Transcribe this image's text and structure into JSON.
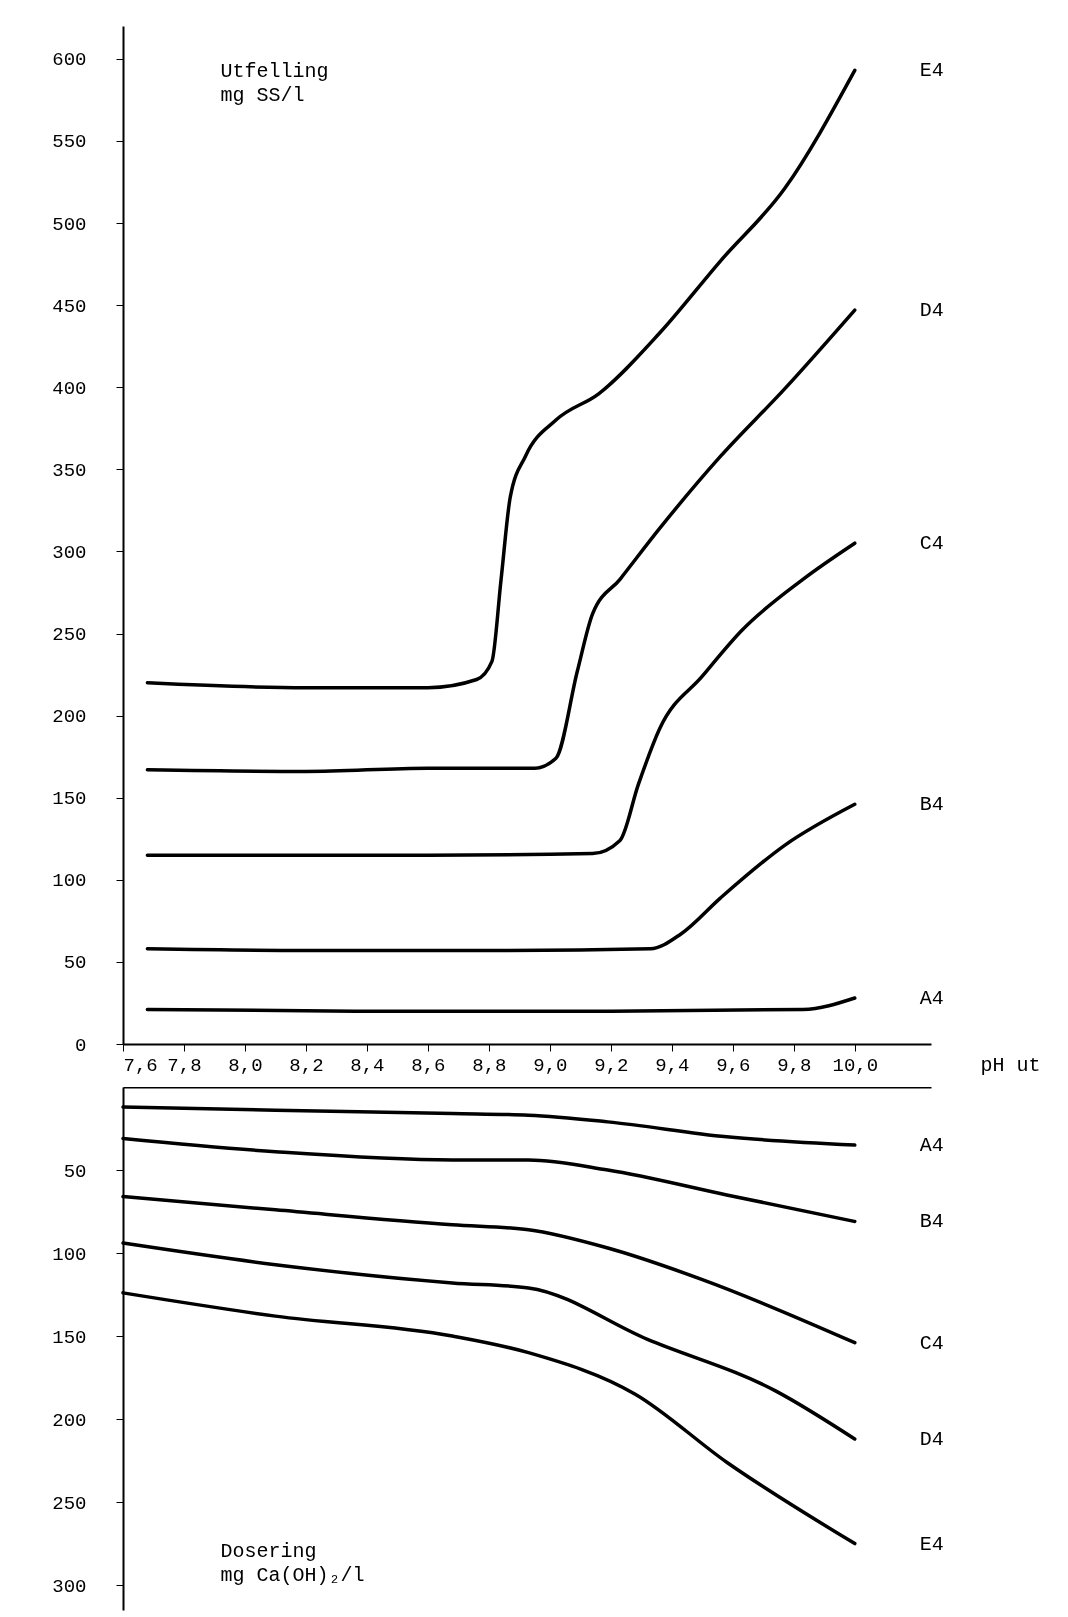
{
  "chart_data": [
    {
      "type": "line",
      "xlabel": "pH ut",
      "ylabel": "Utfelling\nmg SS/l",
      "xlim": [
        7.6,
        10.25
      ],
      "ylim": [
        0,
        620
      ],
      "xticks": [
        {
          "value": 7.6,
          "label": "7,6"
        },
        {
          "value": 7.8,
          "label": "7,8"
        },
        {
          "value": 8.0,
          "label": "8,0"
        },
        {
          "value": 8.2,
          "label": "8,2"
        },
        {
          "value": 8.4,
          "label": "8,4"
        },
        {
          "value": 8.6,
          "label": "8,6"
        },
        {
          "value": 8.8,
          "label": "8,8"
        },
        {
          "value": 9.0,
          "label": "9,0"
        },
        {
          "value": 9.2,
          "label": "9,2"
        },
        {
          "value": 9.4,
          "label": "9,4"
        },
        {
          "value": 9.6,
          "label": "9,6"
        },
        {
          "value": 9.8,
          "label": "9,8"
        },
        {
          "value": 10.0,
          "label": "10,0"
        }
      ],
      "yticks": [
        0,
        50,
        100,
        150,
        200,
        250,
        300,
        350,
        400,
        450,
        500,
        550,
        600
      ],
      "series": [
        {
          "name": "E4",
          "color": "#000000",
          "x": [
            7.68,
            8.2,
            8.6,
            8.76,
            8.81,
            8.84,
            8.87,
            8.92,
            9.02,
            9.16,
            9.36,
            9.56,
            9.77,
            10.0
          ],
          "values": [
            220,
            217,
            217,
            222,
            233,
            283,
            333,
            358,
            380,
            396,
            433,
            477,
            521,
            593
          ]
        },
        {
          "name": "D4",
          "color": "#000000",
          "x": [
            7.68,
            8.2,
            8.6,
            8.95,
            9.02,
            9.09,
            9.14,
            9.23,
            9.36,
            9.56,
            9.77,
            10.0
          ],
          "values": [
            167,
            166,
            168,
            168,
            174,
            227,
            262,
            283,
            314,
            358,
            399,
            447
          ]
        },
        {
          "name": "C4",
          "color": "#000000",
          "x": [
            7.68,
            8.2,
            8.6,
            9.14,
            9.23,
            9.29,
            9.36,
            9.5,
            9.63,
            9.83,
            10.0
          ],
          "values": [
            115,
            115,
            115,
            116,
            124,
            158,
            192,
            224,
            252,
            283,
            305
          ]
        },
        {
          "name": "B4",
          "color": "#000000",
          "x": [
            7.68,
            8.2,
            8.8,
            9.33,
            9.43,
            9.56,
            9.77,
            10.0
          ],
          "values": [
            58,
            57,
            57,
            58,
            67,
            89,
            121,
            146
          ]
        },
        {
          "name": "A4",
          "color": "#000000",
          "x": [
            7.68,
            8.4,
            9.2,
            9.83,
            10.0
          ],
          "values": [
            21,
            20,
            20,
            21,
            28
          ]
        }
      ]
    },
    {
      "type": "line",
      "ylabel": "Dosering\nmg Ca(OH)₂/l",
      "xlim": [
        7.6,
        10.25
      ],
      "ylim": [
        315,
        0
      ],
      "tick_labels": "y",
      "yticks": [
        50,
        100,
        150,
        200,
        250,
        300
      ],
      "series": [
        {
          "name": "A4",
          "color": "#000000",
          "x": [
            7.6,
            8.1,
            8.68,
            8.93,
            9.19,
            9.58,
            10.0
          ],
          "values": [
            12,
            14,
            16,
            17,
            21,
            30,
            35
          ]
        },
        {
          "name": "B4",
          "color": "#000000",
          "x": [
            7.6,
            8.1,
            8.68,
            8.93,
            9.19,
            9.58,
            10.0
          ],
          "values": [
            31,
            39,
            44,
            44,
            50,
            65,
            81
          ]
        },
        {
          "name": "C4",
          "color": "#000000",
          "x": [
            7.6,
            8.1,
            8.68,
            8.93,
            9.19,
            9.5,
            10.0
          ],
          "values": [
            66,
            74,
            83,
            86,
            97,
            116,
            154
          ]
        },
        {
          "name": "D4",
          "color": "#000000",
          "x": [
            7.6,
            8.1,
            8.68,
            8.93,
            9.32,
            9.74,
            10.0
          ],
          "values": [
            94,
            107,
            118,
            121,
            152,
            183,
            212
          ]
        },
        {
          "name": "E4",
          "color": "#000000",
          "x": [
            7.6,
            8.1,
            8.68,
            8.93,
            9.28,
            9.58,
            10.0
          ],
          "values": [
            124,
            138,
            150,
            160,
            185,
            226,
            275
          ]
        }
      ]
    }
  ]
}
